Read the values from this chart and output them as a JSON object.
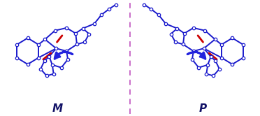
{
  "bg_color": "#ffffff",
  "mirror_line_color": "#bb44bb",
  "bond_color": "#1a1acc",
  "red_color": "#cc0000",
  "node_color": "#ffffff",
  "node_edge": "#1a1acc",
  "arrow_color": "#2222dd",
  "label_M": "M",
  "label_P": "P",
  "label_fontsize": 11,
  "label_fontweight": "bold",
  "label_color": "#111166",
  "figsize": [
    3.72,
    1.66
  ],
  "dpi": 100
}
